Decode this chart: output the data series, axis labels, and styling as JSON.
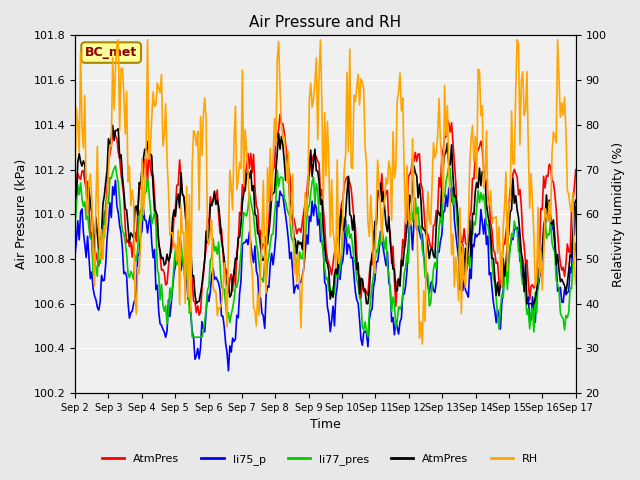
{
  "title": "Air Pressure and RH",
  "xlabel": "Time",
  "ylabel_left": "Air Pressure (kPa)",
  "ylabel_right": "Relativity Humidity (%)",
  "ylim_left": [
    100.2,
    101.8
  ],
  "ylim_right": [
    20,
    100
  ],
  "yticks_left": [
    100.2,
    100.4,
    100.6,
    100.8,
    101.0,
    101.2,
    101.4,
    101.6,
    101.8
  ],
  "yticks_right": [
    20,
    30,
    40,
    50,
    60,
    70,
    80,
    90,
    100
  ],
  "xtick_labels": [
    "Sep 2",
    "Sep 3",
    "Sep 4",
    "Sep 5",
    "Sep 6",
    "Sep 7",
    "Sep 8",
    "Sep 9",
    "Sep 10",
    "Sep 11",
    "Sep 12",
    "Sep 13",
    "Sep 14",
    "Sep 15",
    "Sep 16",
    "Sep 17"
  ],
  "n_days": 15,
  "pts_per_day": 24,
  "colors": {
    "AtmPres_red": "#ff0000",
    "li75_p_blue": "#0000ff",
    "li77_pres_green": "#00cc00",
    "AtmPres_black": "#000000",
    "RH_orange": "#ffa500"
  },
  "legend_labels": [
    "AtmPres",
    "li75_p",
    "li77_pres",
    "AtmPres",
    "RH"
  ],
  "annotation_text": "BC_met",
  "annotation_bg": "#ffff99",
  "annotation_edge": "#aa8800",
  "bg_color": "#e8e8e8",
  "plot_bg_color": "#f0f0f0",
  "linewidth": 1.2
}
